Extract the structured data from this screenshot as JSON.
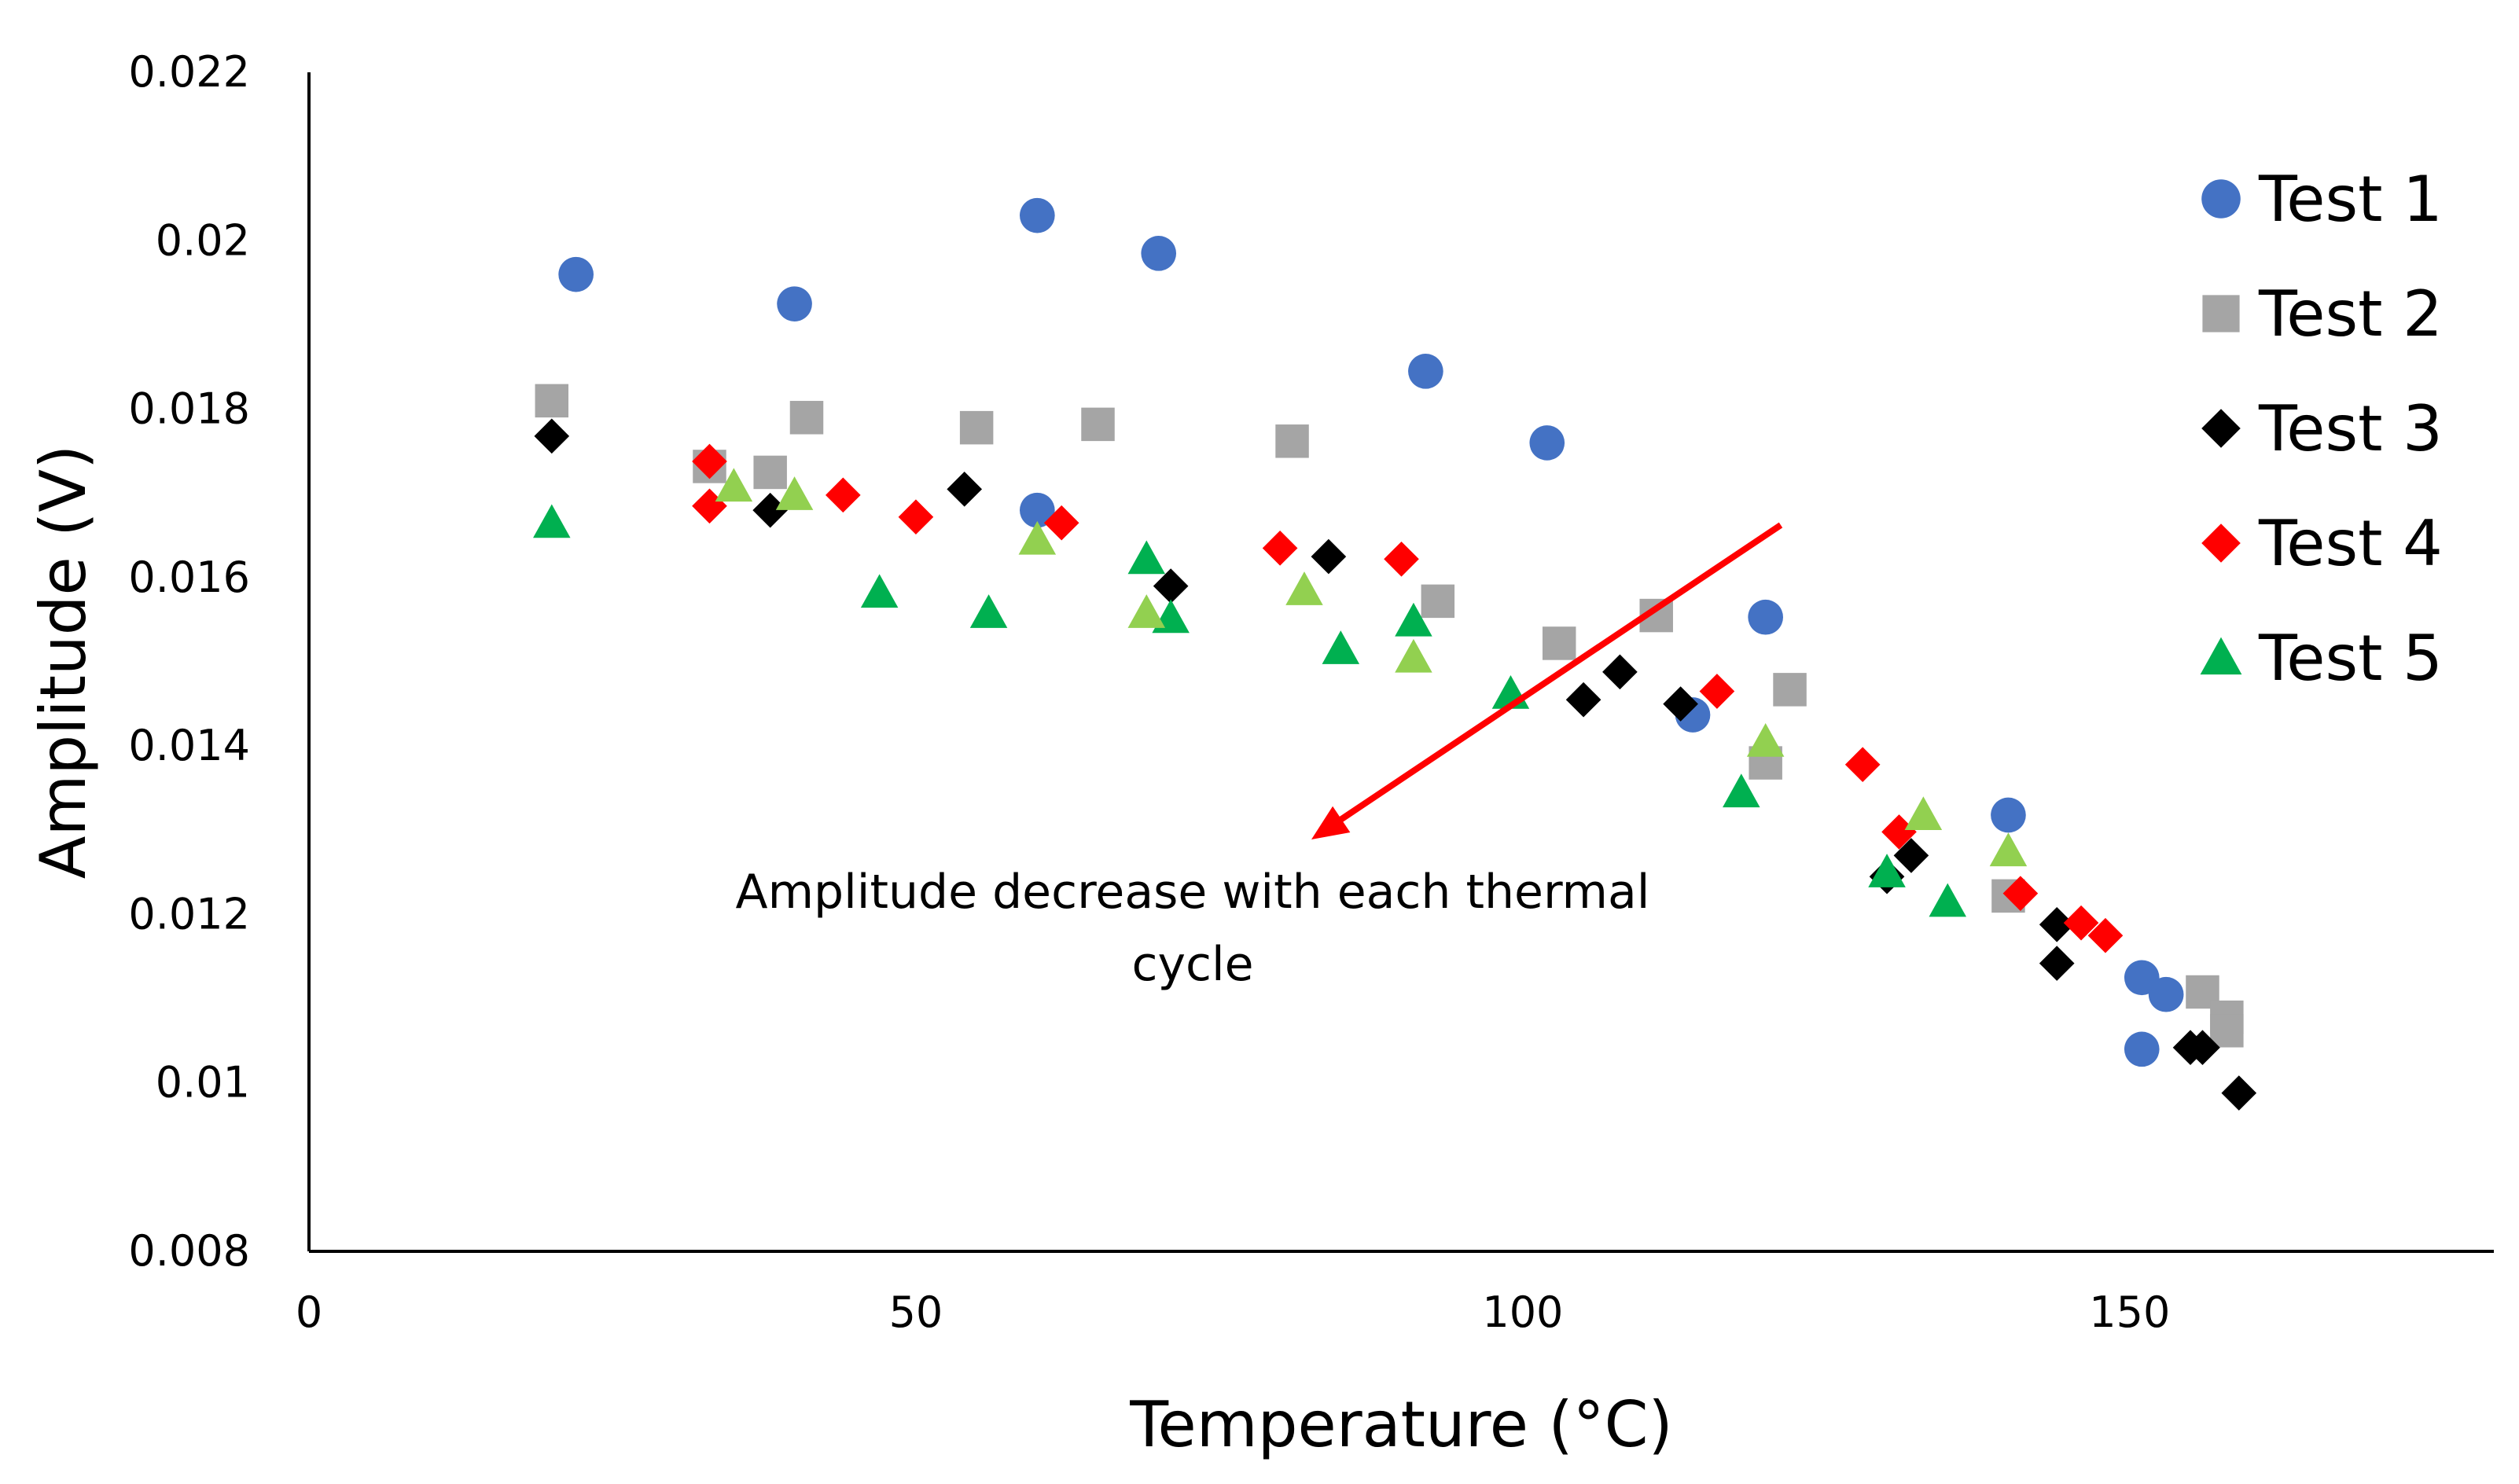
{
  "chart_data": {
    "type": "scatter",
    "title": "",
    "xlabel": "Temperature (°C)",
    "ylabel": "Amplitude (V)",
    "xlim": [
      0,
      180
    ],
    "ylim": [
      0.008,
      0.022
    ],
    "x_ticks": [
      0,
      50,
      100,
      150
    ],
    "x_tick_labels": [
      "0",
      "50",
      "100",
      "150"
    ],
    "y_ticks": [
      0.008,
      0.01,
      0.012,
      0.014,
      0.016,
      0.018,
      0.02,
      0.022
    ],
    "y_tick_labels": [
      "0.008",
      "0.01",
      "0.012",
      "0.014",
      "0.016",
      "0.018",
      "0.02",
      "0.022"
    ],
    "grid": false,
    "legend_position": "right",
    "series": [
      {
        "name": "Test 1",
        "marker": "circle",
        "color": "#4472C4",
        "points": [
          [
            22,
            0.0196
          ],
          [
            40,
            0.01925
          ],
          [
            60,
            0.0203
          ],
          [
            60,
            0.0168
          ],
          [
            70,
            0.01985
          ],
          [
            92,
            0.01845
          ],
          [
            102,
            0.0176
          ],
          [
            114,
            0.01437
          ],
          [
            120,
            0.01553
          ],
          [
            140,
            0.01318
          ],
          [
            151,
            0.01125
          ],
          [
            151,
            0.0104
          ],
          [
            153,
            0.01105
          ]
        ]
      },
      {
        "name": "Test 2",
        "marker": "square",
        "color": "#A5A5A5",
        "points": [
          [
            20,
            0.0181
          ],
          [
            33,
            0.01732
          ],
          [
            38,
            0.01725
          ],
          [
            41,
            0.0179
          ],
          [
            55,
            0.01778
          ],
          [
            65,
            0.01782
          ],
          [
            81,
            0.01762
          ],
          [
            93,
            0.01572
          ],
          [
            103,
            0.01522
          ],
          [
            111,
            0.01555
          ],
          [
            120,
            0.0138
          ],
          [
            122,
            0.01467
          ],
          [
            140,
            0.01222
          ],
          [
            156,
            0.01108
          ],
          [
            158,
            0.01078
          ],
          [
            158,
            0.01062
          ]
        ]
      },
      {
        "name": "Test 3",
        "marker": "diamond",
        "color": "#000000",
        "points": [
          [
            20,
            0.01768
          ],
          [
            38,
            0.0168
          ],
          [
            54,
            0.01705
          ],
          [
            71,
            0.0159
          ],
          [
            84,
            0.01625
          ],
          [
            105,
            0.01455
          ],
          [
            108,
            0.01488
          ],
          [
            113,
            0.0145
          ],
          [
            130,
            0.01245
          ],
          [
            132,
            0.0127
          ],
          [
            144,
            0.01188
          ],
          [
            144,
            0.01142
          ],
          [
            155,
            0.01042
          ],
          [
            156,
            0.01042
          ],
          [
            159,
            0.00988
          ]
        ]
      },
      {
        "name": "Test 4",
        "marker": "diamond",
        "color": "#FF0000",
        "points": [
          [
            33,
            0.01738
          ],
          [
            33,
            0.01685
          ],
          [
            44,
            0.01698
          ],
          [
            50,
            0.01672
          ],
          [
            62,
            0.01665
          ],
          [
            80,
            0.01635
          ],
          [
            90,
            0.01622
          ],
          [
            116,
            0.01465
          ],
          [
            128,
            0.01378
          ],
          [
            131,
            0.01298
          ],
          [
            141,
            0.01225
          ],
          [
            146,
            0.0119
          ],
          [
            148,
            0.01175
          ]
        ]
      },
      {
        "name": "Test 5",
        "marker": "triangle",
        "color": "#00B050",
        "legend_visible": true,
        "points": [
          [
            20,
            0.01665
          ],
          [
            47,
            0.01582
          ],
          [
            56,
            0.01558
          ],
          [
            69,
            0.01622
          ],
          [
            71,
            0.01552
          ],
          [
            85,
            0.01515
          ],
          [
            91,
            0.01548
          ],
          [
            99,
            0.01462
          ],
          [
            118,
            0.01345
          ],
          [
            130,
            0.0125
          ],
          [
            135,
            0.01215
          ]
        ]
      },
      {
        "name": "Test 5 (light)",
        "marker": "triangle",
        "color": "#92D050",
        "legend_visible": false,
        "points": [
          [
            35,
            0.01708
          ],
          [
            40,
            0.01698
          ],
          [
            60,
            0.01645
          ],
          [
            69,
            0.01558
          ],
          [
            82,
            0.01585
          ],
          [
            91,
            0.01505
          ],
          [
            120,
            0.01405
          ],
          [
            133,
            0.01318
          ],
          [
            140,
            0.01275
          ]
        ]
      }
    ],
    "annotation": {
      "lines": [
        "Amplitude decrease with each thermal",
        "cycle"
      ],
      "arrow_color": "#FF0000"
    }
  }
}
